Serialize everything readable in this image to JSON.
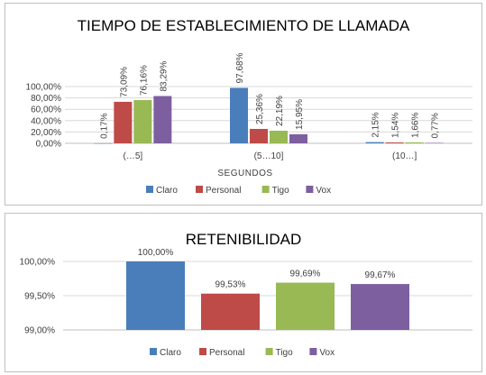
{
  "chart_data": [
    {
      "type": "bar",
      "title": "TIEMPO DE ESTABLECIMIENTO DE LLAMADA",
      "xlabel": "SEGUNDOS",
      "ylabel": "",
      "categories": [
        "(…5]",
        "(5…10]",
        "(10…]"
      ],
      "ylim": [
        0,
        100
      ],
      "yticks": [
        "0,00%",
        "20,00%",
        "40,00%",
        "60,00%",
        "80,00%",
        "100,00%"
      ],
      "ytick_values": [
        0,
        20,
        40,
        60,
        80,
        100
      ],
      "grid": true,
      "legend_position": "bottom",
      "series": [
        {
          "name": "Claro",
          "color": "#4a7ebb",
          "values": [
            0.17,
            97.68,
            2.15
          ],
          "labels": [
            "0,17%",
            "97,68%",
            "2,15%"
          ]
        },
        {
          "name": "Personal",
          "color": "#be4b48",
          "values": [
            73.09,
            25.36,
            1.54
          ],
          "labels": [
            "73,09%",
            "25,36%",
            "1,54%"
          ]
        },
        {
          "name": "Tigo",
          "color": "#98b954",
          "values": [
            76.16,
            22.19,
            1.66
          ],
          "labels": [
            "76,16%",
            "22,19%",
            "1,66%"
          ]
        },
        {
          "name": "Vox",
          "color": "#7d5fa0",
          "values": [
            83.29,
            15.95,
            0.77
          ],
          "labels": [
            "83,29%",
            "15,95%",
            "0,77%"
          ]
        }
      ]
    },
    {
      "type": "bar",
      "title": "RETENIBILIDAD",
      "xlabel": "",
      "ylabel": "",
      "categories": [
        ""
      ],
      "ylim": [
        99,
        100
      ],
      "yticks": [
        "99,00%",
        "99,50%",
        "100,00%"
      ],
      "ytick_values": [
        99,
        99.5,
        100
      ],
      "grid": true,
      "legend_position": "bottom",
      "series": [
        {
          "name": "Claro",
          "color": "#4a7ebb",
          "values": [
            100.0
          ],
          "labels": [
            "100,00%"
          ]
        },
        {
          "name": "Personal",
          "color": "#be4b48",
          "values": [
            99.53
          ],
          "labels": [
            "99,53%"
          ]
        },
        {
          "name": "Tigo",
          "color": "#98b954",
          "values": [
            99.69
          ],
          "labels": [
            "99,69%"
          ]
        },
        {
          "name": "Vox",
          "color": "#7d5fa0",
          "values": [
            99.67
          ],
          "labels": [
            "99,67%"
          ]
        }
      ]
    }
  ]
}
